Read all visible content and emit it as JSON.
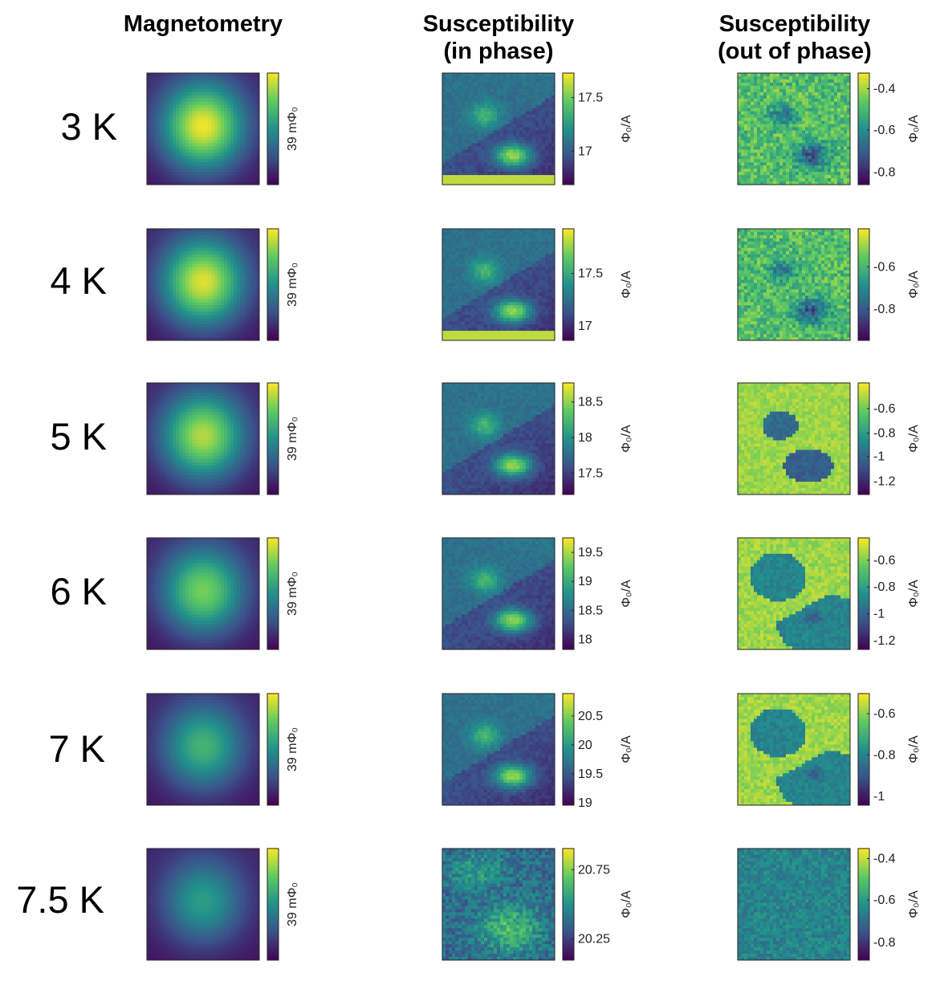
{
  "columns": [
    {
      "title_line1": "Magnetometry",
      "title_line2": ""
    },
    {
      "title_line1": "Susceptibility",
      "title_line2": "(in phase)"
    },
    {
      "title_line1": "Susceptibility",
      "title_line2": "(out of phase)"
    }
  ],
  "units": {
    "magnetometry": "39 mΦ₀",
    "susceptibility": "Φ₀/A"
  },
  "colormap": [
    "#440154",
    "#3b528b",
    "#21918c",
    "#5ec962",
    "#fde725"
  ],
  "rows": [
    {
      "label": "3 K",
      "mag": {
        "peak": 0.95
      },
      "inphase": {
        "ticks": [
          "17.5",
          "17"
        ],
        "tick_pos": [
          0.22,
          0.7
        ],
        "pattern": "two-spots"
      },
      "outphase": {
        "ticks": [
          "-0.4",
          "-0.6",
          "-0.8"
        ],
        "tick_pos": [
          0.14,
          0.51,
          0.89
        ],
        "pattern": "noisy-spots"
      }
    },
    {
      "label": "4 K",
      "mag": {
        "peak": 0.92
      },
      "inphase": {
        "ticks": [
          "17.5",
          "17"
        ],
        "tick_pos": [
          0.4,
          0.87
        ],
        "pattern": "two-spots"
      },
      "outphase": {
        "ticks": [
          "-0.6",
          "-0.8"
        ],
        "tick_pos": [
          0.34,
          0.72
        ],
        "pattern": "noisy-spots"
      }
    },
    {
      "label": "5 K",
      "mag": {
        "peak": 0.85
      },
      "inphase": {
        "ticks": [
          "18.5",
          "18",
          "17.5"
        ],
        "tick_pos": [
          0.17,
          0.49,
          0.81
        ],
        "pattern": "two-spots"
      },
      "outphase": {
        "ticks": [
          "-0.6",
          "-0.8",
          "-1",
          "-1.2"
        ],
        "tick_pos": [
          0.23,
          0.45,
          0.66,
          0.88
        ],
        "pattern": "clean-spots"
      }
    },
    {
      "label": "6 K",
      "mag": {
        "peak": 0.75
      },
      "inphase": {
        "ticks": [
          "19.5",
          "19",
          "18.5",
          "18"
        ],
        "tick_pos": [
          0.13,
          0.39,
          0.65,
          0.91
        ],
        "pattern": "two-spots"
      },
      "outphase": {
        "ticks": [
          "-0.6",
          "-0.8",
          "-1",
          "-1.2"
        ],
        "tick_pos": [
          0.2,
          0.44,
          0.68,
          0.92
        ],
        "pattern": "large-spots"
      }
    },
    {
      "label": "7 K",
      "mag": {
        "peak": 0.6
      },
      "inphase": {
        "ticks": [
          "20.5",
          "20",
          "19.5",
          "19"
        ],
        "tick_pos": [
          0.2,
          0.46,
          0.72,
          0.98
        ],
        "pattern": "two-spots"
      },
      "outphase": {
        "ticks": [
          "-0.6",
          "-0.8",
          "-1"
        ],
        "tick_pos": [
          0.18,
          0.55,
          0.92
        ],
        "pattern": "large-spots"
      }
    },
    {
      "label": "7.5 K",
      "mag": {
        "peak": 0.5
      },
      "inphase": {
        "ticks": [
          "20.75",
          "20.25"
        ],
        "tick_pos": [
          0.19,
          0.81
        ],
        "pattern": "faint-spots"
      },
      "outphase": {
        "ticks": [
          "-0.4",
          "-0.6",
          "-0.8"
        ],
        "tick_pos": [
          0.09,
          0.46,
          0.84
        ],
        "pattern": "flat-noise"
      }
    }
  ]
}
